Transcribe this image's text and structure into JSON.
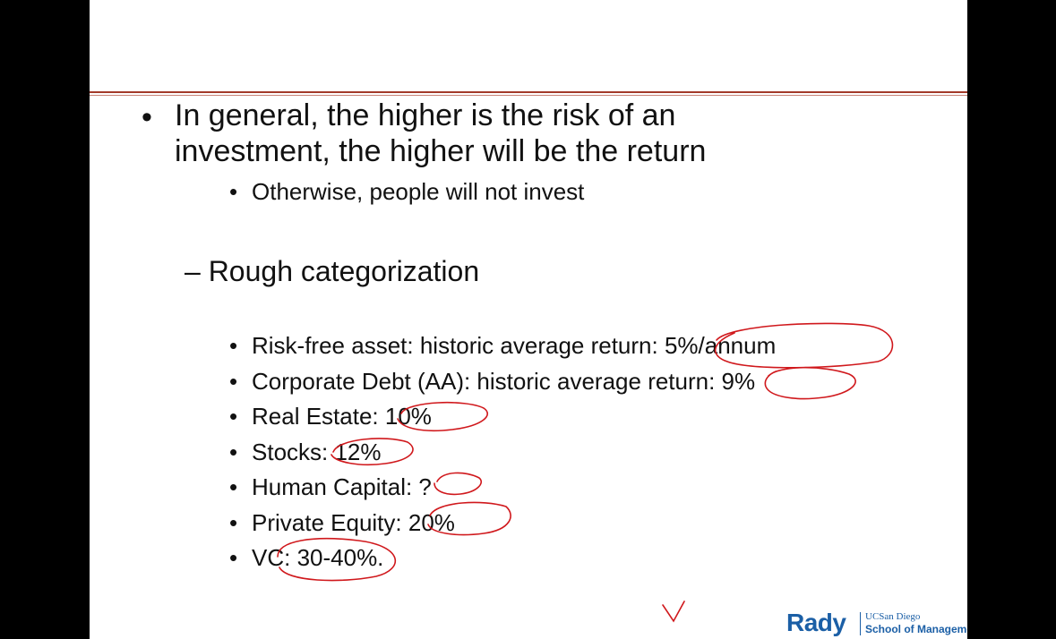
{
  "slide": {
    "main_bullet": {
      "line1": "In general, the higher is the risk of an",
      "line2": "investment, the higher will be the return"
    },
    "sub_bullet": "Otherwise, people will not invest",
    "section_heading": "– Rough categorization",
    "categories": [
      "Risk-free asset: historic average return: 5%/annum",
      "Corporate Debt (AA): historic average return: 9%",
      "Real Estate: 10%",
      "Stocks: 12%",
      "Human Capital: ?",
      "Private Equity: 20%",
      "VC: 30-40%."
    ],
    "bullet_char": "•"
  },
  "logo": {
    "name": "Rady",
    "university": "UCSan Diego",
    "school": "School of Management"
  },
  "colors": {
    "rule": "#a33a2a",
    "ink": "#d0181c",
    "logo": "#1b5fa6"
  }
}
